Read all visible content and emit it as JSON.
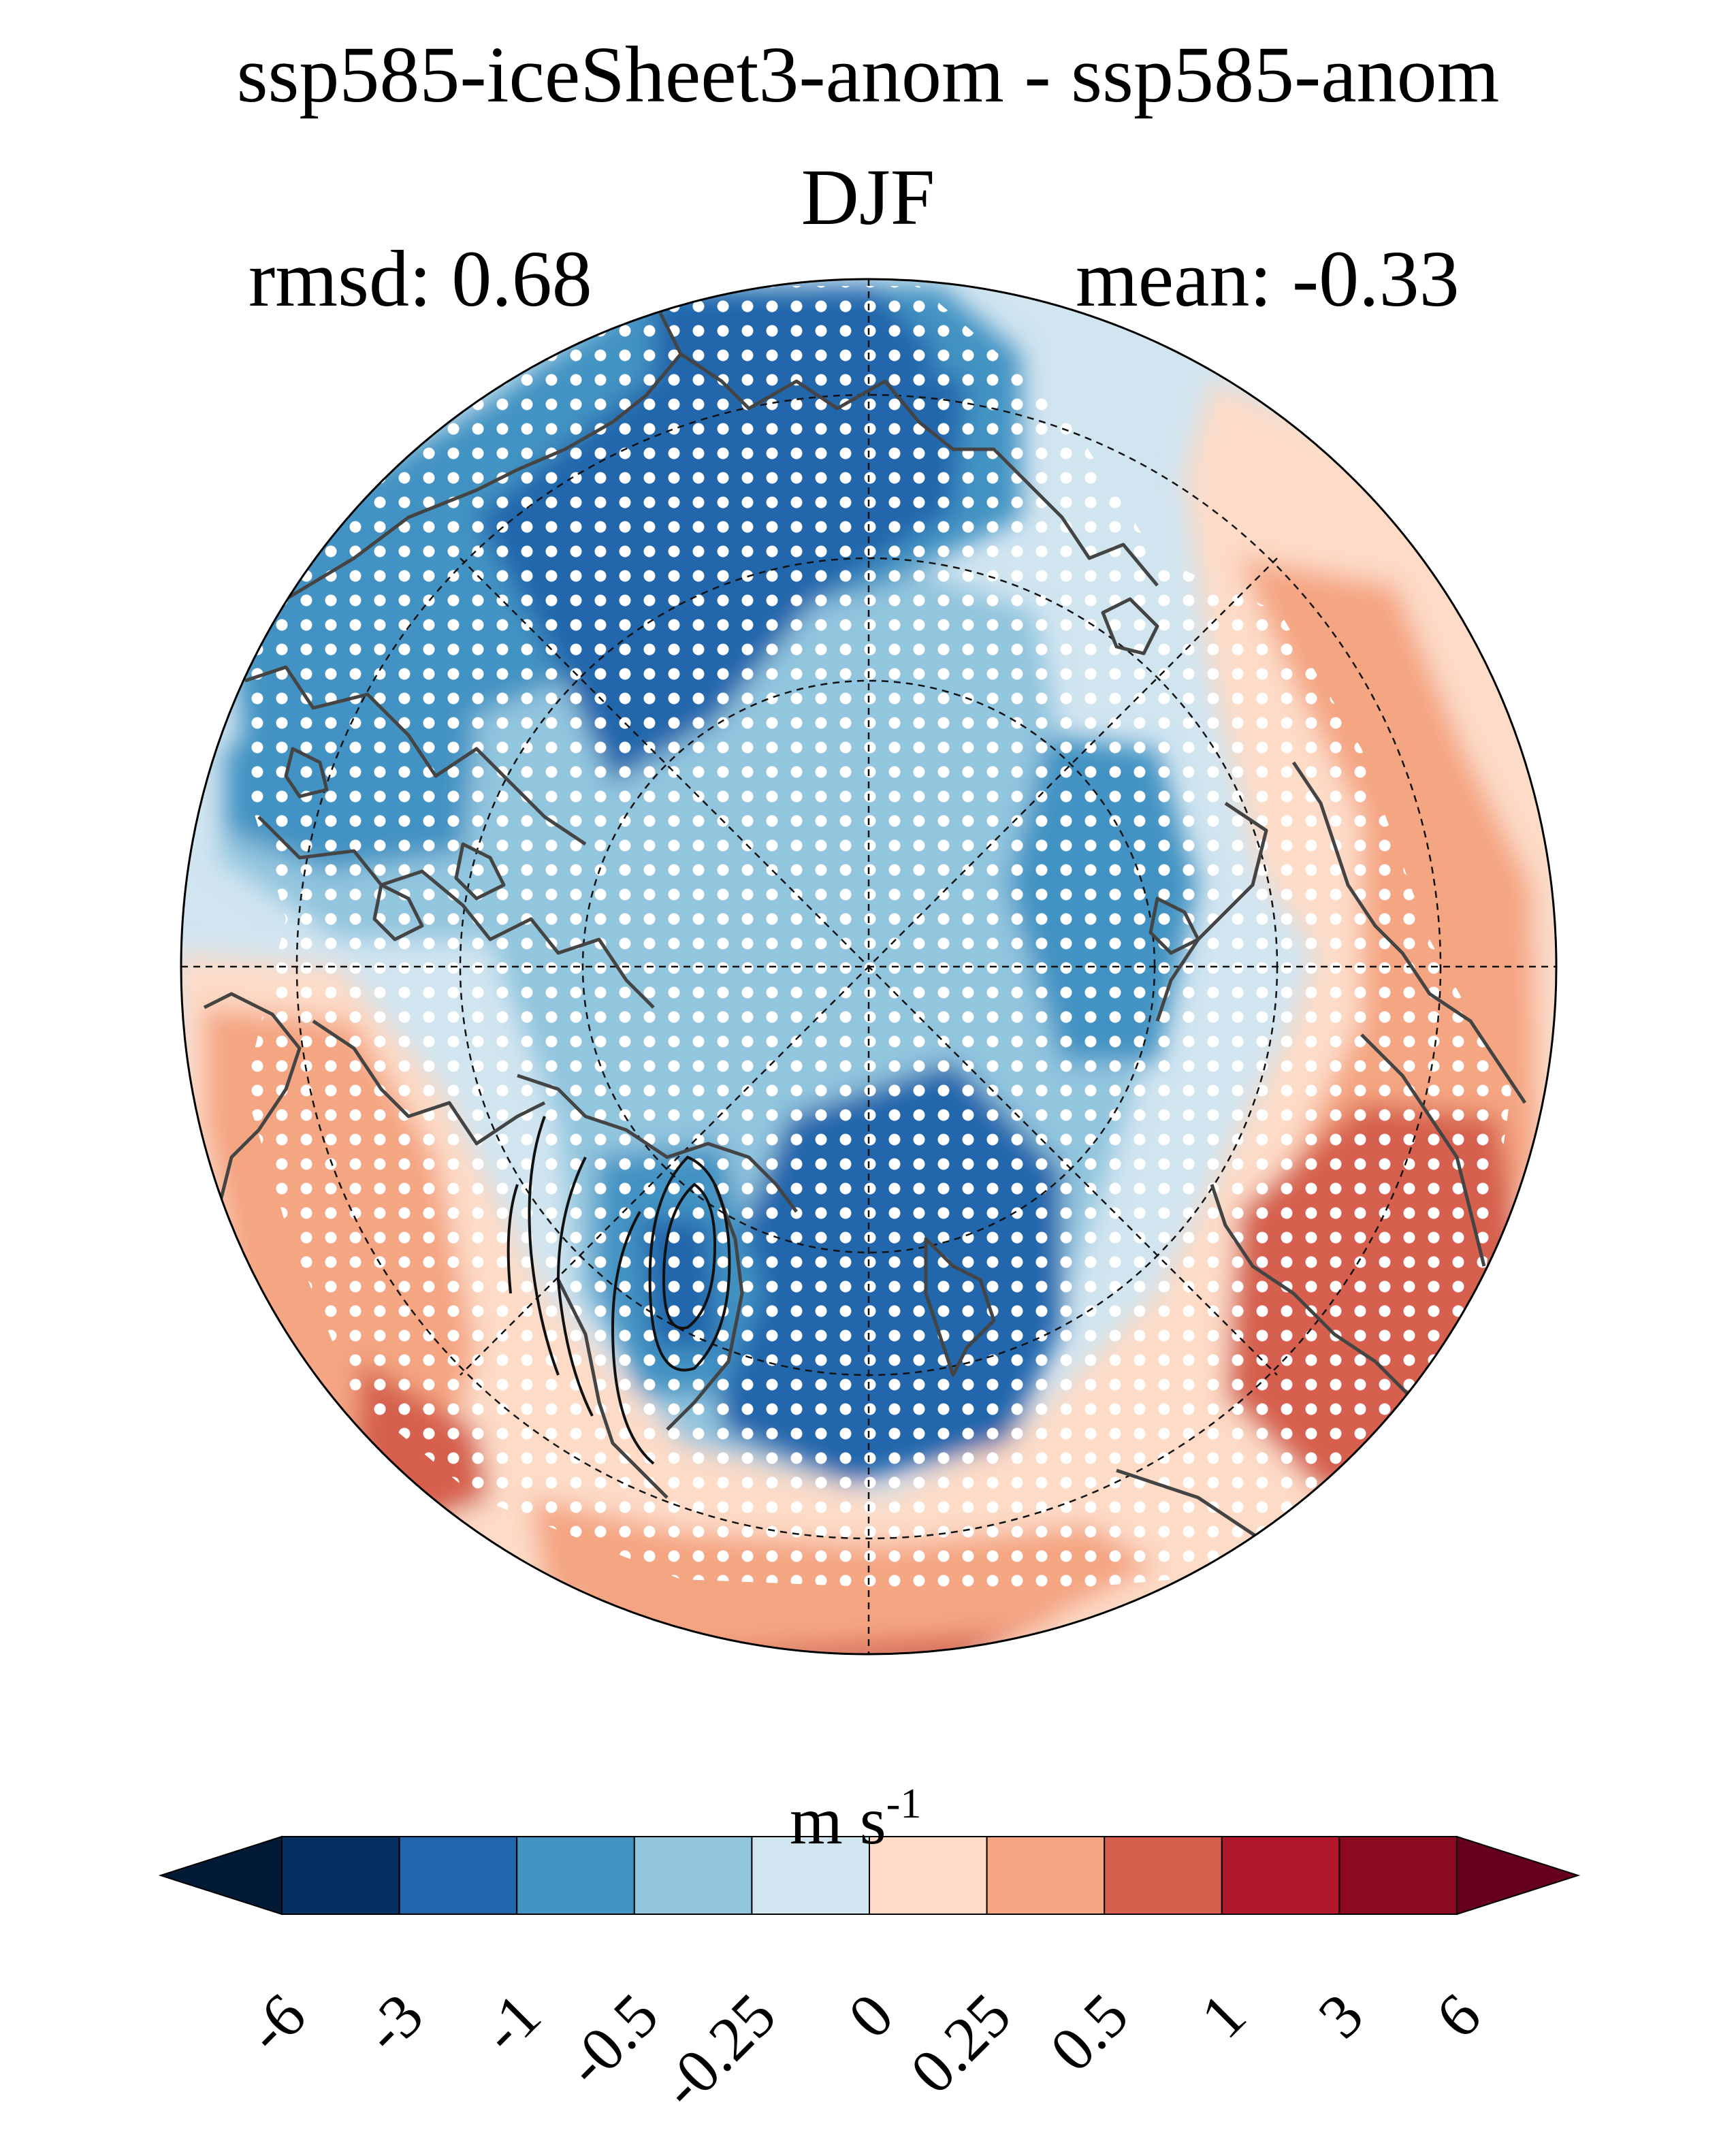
{
  "title": {
    "line1": "ssp585-iceSheet3-anom - ssp585-anom",
    "line2": "DJF"
  },
  "stats": {
    "rmsd": "rmsd: 0.68",
    "mean": "mean: -0.33"
  },
  "map": {
    "projection": "north-polar-stereographic",
    "variable_unit_base": "m s",
    "variable_unit_exp": "-1",
    "stippling": "white dots = significant",
    "gridlines": "dashed"
  },
  "colorbar": {
    "boundaries": [
      "-6",
      "-3",
      "-1",
      "-0.5",
      "-0.25",
      "0",
      "0.25",
      "0.5",
      "1",
      "3",
      "6"
    ],
    "colors": [
      "#053061",
      "#2166ac",
      "#4393c3",
      "#92c5de",
      "#d1e5f0",
      "#fddbc7",
      "#f4a582",
      "#d6604d",
      "#b2182b",
      "#8b0a22"
    ],
    "under_color": "#031a36",
    "over_color": "#67001f"
  }
}
